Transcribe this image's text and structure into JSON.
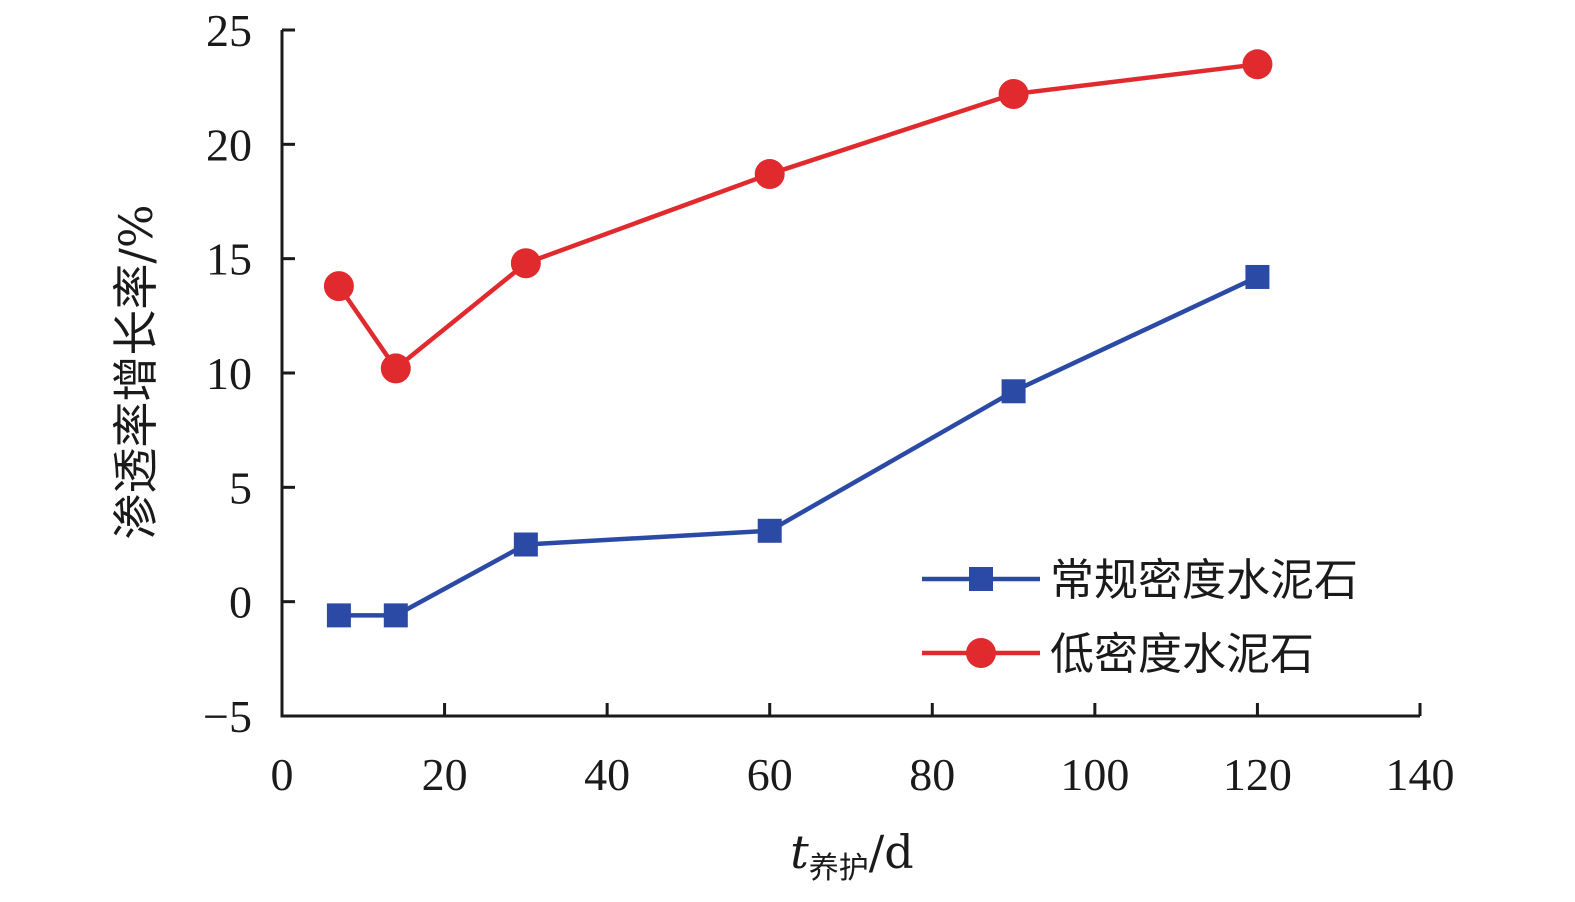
{
  "chart_data": {
    "type": "line",
    "xlabel": {
      "main": "t",
      "sub": "养护",
      "unit": "/d"
    },
    "ylabel": "渗透率增长率/%",
    "xlim": [
      0,
      140
    ],
    "ylim": [
      -5,
      25
    ],
    "xticks": [
      0,
      20,
      40,
      60,
      80,
      100,
      120,
      140
    ],
    "yticks": [
      -5,
      0,
      5,
      10,
      15,
      20,
      25
    ],
    "grid": false,
    "legend_position": "bottom-right",
    "series": [
      {
        "name": "常规密度水泥石",
        "color": "#2b4aa6",
        "marker": "square",
        "x": [
          7,
          14,
          30,
          60,
          90,
          120
        ],
        "y": [
          -0.6,
          -0.6,
          2.5,
          3.1,
          9.2,
          14.2
        ]
      },
      {
        "name": "低密度水泥石",
        "color": "#e02a2e",
        "marker": "circle",
        "x": [
          7,
          14,
          30,
          60,
          90,
          120
        ],
        "y": [
          13.8,
          10.2,
          14.8,
          18.7,
          22.2,
          23.5
        ]
      }
    ]
  }
}
